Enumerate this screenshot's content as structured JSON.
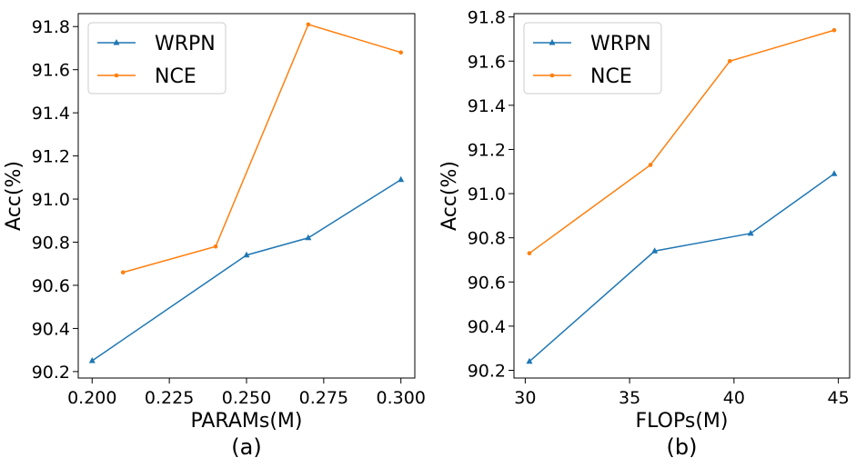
{
  "colors": {
    "wrpn": "#1f77b4",
    "nce": "#ff7f0e"
  },
  "chart_data": [
    {
      "id": "a",
      "type": "line",
      "caption": "(a)",
      "xlabel": "PARAMs(M)",
      "ylabel": "Acc(%)",
      "xlim": [
        0.1955,
        0.3045
      ],
      "ylim": [
        90.17,
        91.86
      ],
      "xticks": [
        {
          "value": 0.2,
          "label": "0.200"
        },
        {
          "value": 0.225,
          "label": "0.225"
        },
        {
          "value": 0.25,
          "label": "0.250"
        },
        {
          "value": 0.275,
          "label": "0.275"
        },
        {
          "value": 0.3,
          "label": "0.300"
        }
      ],
      "yticks": [
        {
          "value": 90.2,
          "label": "90.2"
        },
        {
          "value": 90.4,
          "label": "90.4"
        },
        {
          "value": 90.6,
          "label": "90.6"
        },
        {
          "value": 90.8,
          "label": "90.8"
        },
        {
          "value": 91.0,
          "label": "91.0"
        },
        {
          "value": 91.2,
          "label": "91.2"
        },
        {
          "value": 91.4,
          "label": "91.4"
        },
        {
          "value": 91.6,
          "label": "91.6"
        },
        {
          "value": 91.8,
          "label": "91.8"
        }
      ],
      "legend": "top-left",
      "series": [
        {
          "name": "WRPN",
          "color": "#1f77b4",
          "marker": "triangle",
          "x": [
            0.2,
            0.25,
            0.27,
            0.3
          ],
          "y": [
            90.25,
            90.74,
            90.82,
            91.09
          ]
        },
        {
          "name": "NCE",
          "color": "#ff7f0e",
          "marker": "circle",
          "x": [
            0.21,
            0.24,
            0.27,
            0.3
          ],
          "y": [
            90.66,
            90.78,
            91.81,
            91.68
          ]
        }
      ]
    },
    {
      "id": "b",
      "type": "line",
      "caption": "(b)",
      "xlabel": "FLOPs(M)",
      "ylabel": "Acc(%)",
      "xlim": [
        29.46,
        45.54
      ],
      "ylim": [
        90.165,
        91.815
      ],
      "xticks": [
        {
          "value": 30,
          "label": "30"
        },
        {
          "value": 35,
          "label": "35"
        },
        {
          "value": 40,
          "label": "40"
        },
        {
          "value": 45,
          "label": "45"
        }
      ],
      "yticks": [
        {
          "value": 90.2,
          "label": "90.2"
        },
        {
          "value": 90.4,
          "label": "90.4"
        },
        {
          "value": 90.6,
          "label": "90.6"
        },
        {
          "value": 90.8,
          "label": "90.8"
        },
        {
          "value": 91.0,
          "label": "91.0"
        },
        {
          "value": 91.2,
          "label": "91.2"
        },
        {
          "value": 91.4,
          "label": "91.4"
        },
        {
          "value": 91.6,
          "label": "91.6"
        },
        {
          "value": 91.8,
          "label": "91.8"
        }
      ],
      "legend": "top-left",
      "series": [
        {
          "name": "WRPN",
          "color": "#1f77b4",
          "marker": "triangle",
          "x": [
            30.2,
            36.2,
            40.8,
            44.8
          ],
          "y": [
            90.24,
            90.74,
            90.82,
            91.09
          ]
        },
        {
          "name": "NCE",
          "color": "#ff7f0e",
          "marker": "circle",
          "x": [
            30.2,
            36.0,
            39.8,
            44.8
          ],
          "y": [
            90.73,
            91.13,
            91.6,
            91.74
          ]
        }
      ]
    }
  ]
}
